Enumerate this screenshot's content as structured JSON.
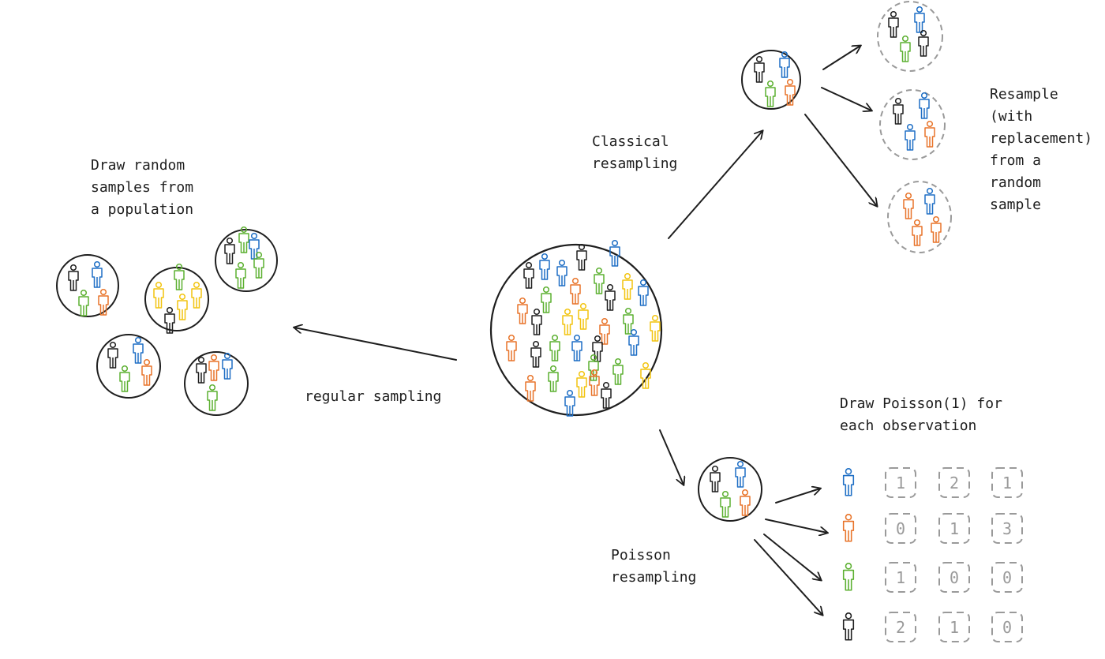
{
  "labels": {
    "draw_random": "Draw random\nsamples from\na population",
    "regular_sampling": "regular sampling",
    "classical_resampling": "Classical\nresampling",
    "resample_with_replacement": "Resample\n(with\nreplacement)\nfrom a\nrandom\nsample",
    "draw_poisson": "Draw Poisson(1) for\neach observation",
    "poisson_resampling": "Poisson\nresampling"
  },
  "colors": {
    "black": "#1e1e1e",
    "blue": "#1f6fc5",
    "orange": "#e8742a",
    "green": "#5cb030",
    "yellow": "#f2c40f",
    "dashed": "#9a9a9a"
  },
  "poisson_table": {
    "rows": [
      {
        "figure_color": "blue",
        "counts": [
          "1",
          "2",
          "1"
        ]
      },
      {
        "figure_color": "orange",
        "counts": [
          "0",
          "1",
          "3"
        ]
      },
      {
        "figure_color": "green",
        "counts": [
          "1",
          "0",
          "0"
        ]
      },
      {
        "figure_color": "black",
        "counts": [
          "2",
          "1",
          "0"
        ]
      }
    ]
  }
}
